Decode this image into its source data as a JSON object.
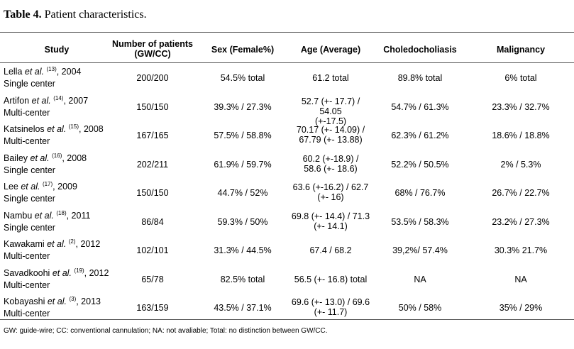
{
  "caption": {
    "label": "Table 4.",
    "text": "Patient characteristics."
  },
  "headers": {
    "study": "Study",
    "patients_line1": "Number of patients",
    "patients_line2": "(GW/CC)",
    "sex": "Sex (Female%)",
    "age": "Age (Average)",
    "choledo": "Choledocholiasis",
    "malignancy": "Malignancy"
  },
  "rows": [
    {
      "author": "Lella",
      "etal": "et al.",
      "ref": "(13)",
      "year": ", 2004",
      "setting": "Single center",
      "patients": "200/200",
      "sex": "54.5% total",
      "age1": "61.2 total",
      "age2": "",
      "choledo": "89.8% total",
      "malignancy": "6% total"
    },
    {
      "author": "Artifon",
      "etal": "et al.",
      "ref": "(14)",
      "year": ", 2007",
      "setting": "Multi-center",
      "patients": "150/150",
      "sex": "39.3% / 27.3%",
      "age1": "52.7 (+- 17.7) / 54.05",
      "age2": "(+-17.5)",
      "choledo": "54.7% / 61.3%",
      "malignancy": "23.3% / 32.7%"
    },
    {
      "author": "Katsinelos",
      "etal": "et al.",
      "ref": "(15)",
      "year": ", 2008",
      "setting": "Multi-center",
      "patients": "167/165",
      "sex": "57.5% / 58.8%",
      "age1": "70.17 (+- 14.09) /",
      "age2": "67.79 (+- 13.88)",
      "choledo": "62.3% / 61.2%",
      "malignancy": "18.6% / 18.8%"
    },
    {
      "author": "Bailey",
      "etal": "et al.",
      "ref": "(16)",
      "year": ", 2008",
      "setting": "Single center",
      "patients": "202/211",
      "sex": "61.9% / 59.7%",
      "age1": "60.2 (+-18.9) /",
      "age2": "58.6 (+- 18.6)",
      "choledo": "52.2% / 50.5%",
      "malignancy": "2% / 5.3%"
    },
    {
      "author": "Lee",
      "etal": "et al.",
      "ref": "(17)",
      "year": ", 2009",
      "setting": "Single center",
      "patients": "150/150",
      "sex": "44.7% / 52%",
      "age1": "63.6 (+-16.2) / 62.7",
      "age2": "(+- 16)",
      "choledo": "68% / 76.7%",
      "malignancy": "26.7% / 22.7%"
    },
    {
      "author": "Nambu",
      "etal": "et al.",
      "ref": "(18)",
      "year": ", 2011",
      "setting": "Single center",
      "patients": "86/84",
      "sex": "59.3% / 50%",
      "age1": "69.8 (+- 14.4) / 71.3",
      "age2": "(+- 14.1)",
      "choledo": "53.5% / 58.3%",
      "malignancy": "23.2% / 27.3%"
    },
    {
      "author": "Kawakami",
      "etal": "et al.",
      "ref": "(2)",
      "year": ", 2012",
      "setting": "Multi-center",
      "patients": "102/101",
      "sex": "31.3% / 44.5%",
      "age1": "67.4 / 68.2",
      "age2": "",
      "choledo": "39,2%/ 57.4%",
      "malignancy": "30.3% 21.7%"
    },
    {
      "author": "Savadkoohi",
      "etal": "et al.",
      "ref": "(19)",
      "year": ", 2012",
      "setting": "Multi-center",
      "patients": "65/78",
      "sex": "82.5% total",
      "age1": "56.5 (+- 16.8) total",
      "age2": "",
      "choledo": "NA",
      "malignancy": "NA"
    },
    {
      "author": "Kobayashi",
      "etal": "et al.",
      "ref": "(3)",
      "year": ", 2013",
      "setting": "Multi-center",
      "patients": "163/159",
      "sex": "43.5% / 37.1%",
      "age1": "69.6 (+- 13.0) / 69.6",
      "age2": "(+- 11.7)",
      "choledo": "50% / 58%",
      "malignancy": "35% / 29%"
    }
  ],
  "footnote": "GW: guide-wire; CC: conventional cannulation; NA: not avaliable; Total: no distinction between GW/CC."
}
